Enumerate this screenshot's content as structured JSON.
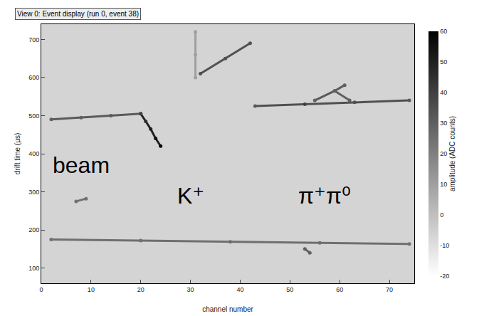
{
  "chart_data": {
    "type": "event_display",
    "title": "View 0: Event display (run 0, event 38)",
    "x_label": "channel number",
    "y_label": "drift time (µs)",
    "xlim": [
      0,
      75
    ],
    "xticks": [
      0,
      10,
      20,
      30,
      40,
      50,
      60,
      70
    ],
    "ylim": [
      60,
      740
    ],
    "yticks": [
      100,
      200,
      300,
      400,
      500,
      600,
      700
    ],
    "colorbar": {
      "label": "amplitude (ADC counts)",
      "range": [
        -20,
        60
      ],
      "ticks": [
        -20,
        -10,
        0,
        10,
        20,
        30,
        40,
        50,
        60
      ]
    },
    "tracks": [
      {
        "x": [
          2,
          8,
          14,
          20
        ],
        "y": [
          490,
          495,
          500,
          505
        ],
        "amplitude": [
          30,
          30,
          32,
          35
        ]
      },
      {
        "x": [
          20,
          21,
          22,
          23,
          24
        ],
        "y": [
          505,
          485,
          465,
          440,
          420
        ],
        "amplitude": [
          40,
          45,
          50,
          55,
          58
        ]
      },
      {
        "x": [
          2,
          20,
          38,
          56,
          74
        ],
        "y": [
          175,
          172,
          169,
          166,
          163
        ],
        "amplitude": [
          25,
          25,
          26,
          25,
          25
        ]
      },
      {
        "x": [
          32,
          37,
          42
        ],
        "y": [
          610,
          650,
          690
        ],
        "amplitude": [
          35,
          35,
          35
        ]
      },
      {
        "x": [
          31,
          31,
          31
        ],
        "y": [
          600,
          660,
          720
        ],
        "amplitude": [
          10,
          10,
          10
        ]
      },
      {
        "x": [
          43,
          53,
          63,
          74
        ],
        "y": [
          525,
          530,
          535,
          540
        ],
        "amplitude": [
          32,
          40,
          35,
          32
        ]
      },
      {
        "x": [
          55,
          59,
          61
        ],
        "y": [
          540,
          565,
          580
        ],
        "amplitude": [
          30,
          35,
          30
        ]
      },
      {
        "x": [
          59,
          62
        ],
        "y": [
          565,
          540
        ],
        "amplitude": [
          30,
          30
        ]
      },
      {
        "x": [
          7,
          9
        ],
        "y": [
          275,
          282
        ],
        "amplitude": [
          25,
          25
        ]
      },
      {
        "x": [
          53,
          54
        ],
        "y": [
          150,
          140
        ],
        "amplitude": [
          30,
          30
        ]
      }
    ],
    "annotations": [
      {
        "text": "beam",
        "x": 8,
        "y": 370
      },
      {
        "text": "K⁺",
        "x": 30,
        "y": 290
      },
      {
        "text": "π⁺π⁰",
        "x": 57,
        "y": 290
      }
    ]
  }
}
